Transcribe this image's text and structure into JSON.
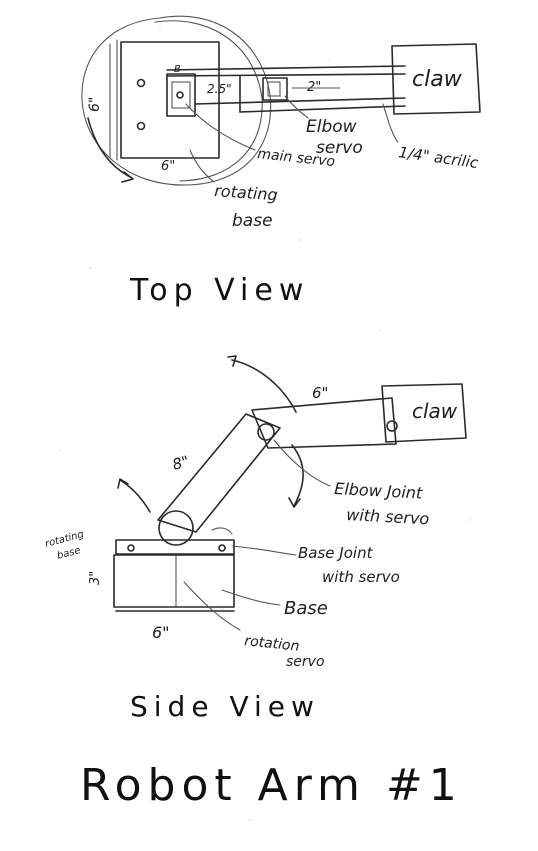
{
  "top_view": {
    "title": "Top View",
    "labels": {
      "claw": "claw",
      "elbow_servo_line1": "Elbow",
      "elbow_servo_line2": "servo",
      "acrylic": "1/4\" acrilic",
      "main_servo": "main servo",
      "rotating_base_line1": "rotating",
      "rotating_base_line2": "base",
      "dim_6_side": "6\"",
      "dim_6_bottom": "6\"",
      "dim_2_5": "2.5\"",
      "dim_2": "2\"",
      "dim_b": "B"
    }
  },
  "side_view": {
    "title": "Side View",
    "labels": {
      "claw": "claw",
      "dim_6_upper": "6\"",
      "dim_8": "8\"",
      "elbow_joint_line1": "Elbow Joint",
      "elbow_joint_line2": "with servo",
      "rotating_base_line1": "rotating",
      "rotating_base_line2": "base",
      "base_joint_line1": "Base Joint",
      "base_joint_line2": "with servo",
      "dim_3": "3\"",
      "base": "Base",
      "dim_6_base": "6\"",
      "rotation_servo_line1": "rotation",
      "rotation_servo_line2": "servo"
    }
  },
  "page_title": "Robot Arm #1"
}
